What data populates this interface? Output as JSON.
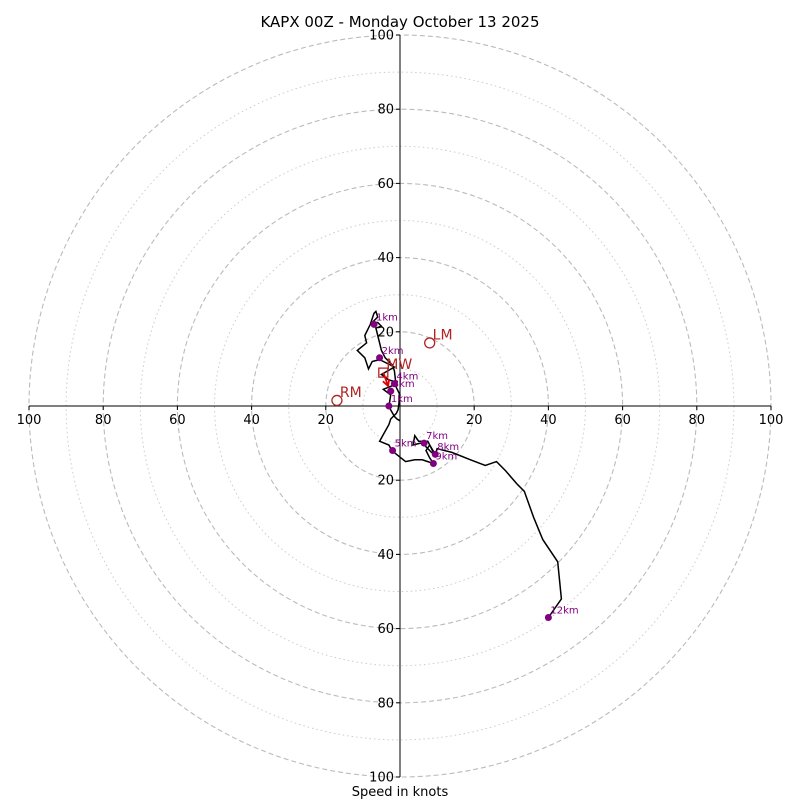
{
  "chart_data": {
    "type": "line",
    "subtype": "hodograph",
    "title": "KAPX 00Z - Monday October 13 2025",
    "xlabel": "Speed in knots",
    "ylabel": "",
    "range": [
      -100,
      100
    ],
    "ring_major": [
      20,
      40,
      60,
      80,
      100
    ],
    "ring_minor": [
      10,
      30,
      50,
      70,
      90
    ],
    "x_ticks": [
      {
        "value": -100,
        "label": "100"
      },
      {
        "value": -80,
        "label": "80"
      },
      {
        "value": -60,
        "label": "60"
      },
      {
        "value": -40,
        "label": "40"
      },
      {
        "value": -20,
        "label": "20"
      },
      {
        "value": 20,
        "label": "20"
      },
      {
        "value": 40,
        "label": "40"
      },
      {
        "value": 60,
        "label": "60"
      },
      {
        "value": 80,
        "label": "80"
      },
      {
        "value": 100,
        "label": "100"
      }
    ],
    "y_ticks": [
      {
        "value": 100,
        "label": "100"
      },
      {
        "value": 80,
        "label": "80"
      },
      {
        "value": 60,
        "label": "60"
      },
      {
        "value": 40,
        "label": "40"
      },
      {
        "value": 20,
        "label": "20"
      },
      {
        "value": -20,
        "label": "20"
      },
      {
        "value": -40,
        "label": "40"
      },
      {
        "value": -60,
        "label": "60"
      },
      {
        "value": -80,
        "label": "80"
      },
      {
        "value": -100,
        "label": "100"
      }
    ],
    "trace": [
      [
        0.0,
        -4.0
      ],
      [
        -0.8,
        -3.5
      ],
      [
        -1.5,
        -2.8
      ],
      [
        -3.0,
        -0.2
      ],
      [
        -2.5,
        3.0
      ],
      [
        -4.5,
        4.5
      ],
      [
        -2.0,
        5.5
      ],
      [
        -1.0,
        6.5
      ],
      [
        -3.0,
        7.0
      ],
      [
        -5.0,
        8.5
      ],
      [
        -1.5,
        10.5
      ],
      [
        -5.5,
        12.5
      ],
      [
        -7.5,
        12.0
      ],
      [
        -8.5,
        10.0
      ],
      [
        -9.5,
        13.0
      ],
      [
        -11.5,
        15.0
      ],
      [
        -9.0,
        17.0
      ],
      [
        -9.5,
        19.0
      ],
      [
        -8.0,
        22.0
      ],
      [
        -7.0,
        25.0
      ],
      [
        -6.5,
        25.5
      ],
      [
        -6.0,
        24.0
      ],
      [
        -7.5,
        22.5
      ],
      [
        -6.0,
        22.5
      ],
      [
        -5.0,
        21.5
      ],
      [
        -6.5,
        21.0
      ],
      [
        -5.5,
        17.0
      ],
      [
        -5.0,
        15.0
      ],
      [
        -4.0,
        13.0
      ],
      [
        -2.0,
        11.0
      ],
      [
        -1.5,
        9.5
      ],
      [
        -1.0,
        5.0
      ],
      [
        0.0,
        3.0
      ],
      [
        -0.5,
        -1.0
      ],
      [
        -1.0,
        -2.0
      ],
      [
        -2.5,
        -3.5
      ],
      [
        -3.0,
        -5.0
      ],
      [
        -5.5,
        -9.5
      ],
      [
        -3.0,
        -10.5
      ],
      [
        -2.2,
        -12.0
      ],
      [
        -1.0,
        -13.0
      ],
      [
        1.5,
        -15.0
      ],
      [
        4.0,
        -14.5
      ],
      [
        6.0,
        -14.5
      ],
      [
        7.5,
        -15.0
      ],
      [
        9.0,
        -15.5
      ],
      [
        8.0,
        -14.0
      ],
      [
        7.0,
        -12.0
      ],
      [
        8.0,
        -10.5
      ],
      [
        9.5,
        -13.0
      ],
      [
        8.5,
        -12.5
      ],
      [
        7.0,
        -11.0
      ],
      [
        6.5,
        -10.0
      ],
      [
        5.5,
        -10.0
      ],
      [
        3.5,
        -10.5
      ],
      [
        4.0,
        -8.0
      ],
      [
        5.0,
        -9.5
      ],
      [
        7.5,
        -9.5
      ],
      [
        9.5,
        -13.5
      ],
      [
        10.0,
        -11.5
      ],
      [
        14.0,
        -12.5
      ],
      [
        19.0,
        -14.5
      ],
      [
        23.0,
        -16.0
      ],
      [
        26.0,
        -15.0
      ],
      [
        28.5,
        -17.5
      ],
      [
        31.5,
        -21.0
      ],
      [
        33.5,
        -23.0
      ],
      [
        36.0,
        -30.0
      ],
      [
        38.5,
        -36.0
      ],
      [
        42.5,
        -42.0
      ],
      [
        43.5,
        -52.0
      ],
      [
        40.0,
        -57.0
      ]
    ],
    "height_points": [
      {
        "label": "1km",
        "u": -3.0,
        "v": 0.0
      },
      {
        "label": "1km",
        "u": -7.0,
        "v": 22.0
      },
      {
        "label": "2km",
        "u": -5.5,
        "v": 13.0
      },
      {
        "label": "3km",
        "u": -2.5,
        "v": 4.0
      },
      {
        "label": "4km",
        "u": -1.5,
        "v": 6.0
      },
      {
        "label": "5km",
        "u": -2.0,
        "v": -12.0
      },
      {
        "label": "7km",
        "u": 6.5,
        "v": -10.0
      },
      {
        "label": "8km",
        "u": 9.5,
        "v": -13.0
      },
      {
        "label": "9km",
        "u": 9.0,
        "v": -15.5
      },
      {
        "label": "12km",
        "u": 40.0,
        "v": -57.0
      }
    ],
    "storm_motion": [
      {
        "label": "LM",
        "u": 8.0,
        "v": 17.0,
        "marker": "circle"
      },
      {
        "label": "RM",
        "u": -17.0,
        "v": 1.5,
        "marker": "circle"
      },
      {
        "label": "MW",
        "u": -4.5,
        "v": 9.0,
        "marker": "square"
      }
    ],
    "colors": {
      "trace": "#000000",
      "points": "#800080",
      "storm": "#b22222",
      "arrow": "#e00000",
      "grid": "#bbbbbb",
      "axis": "#000000"
    }
  }
}
